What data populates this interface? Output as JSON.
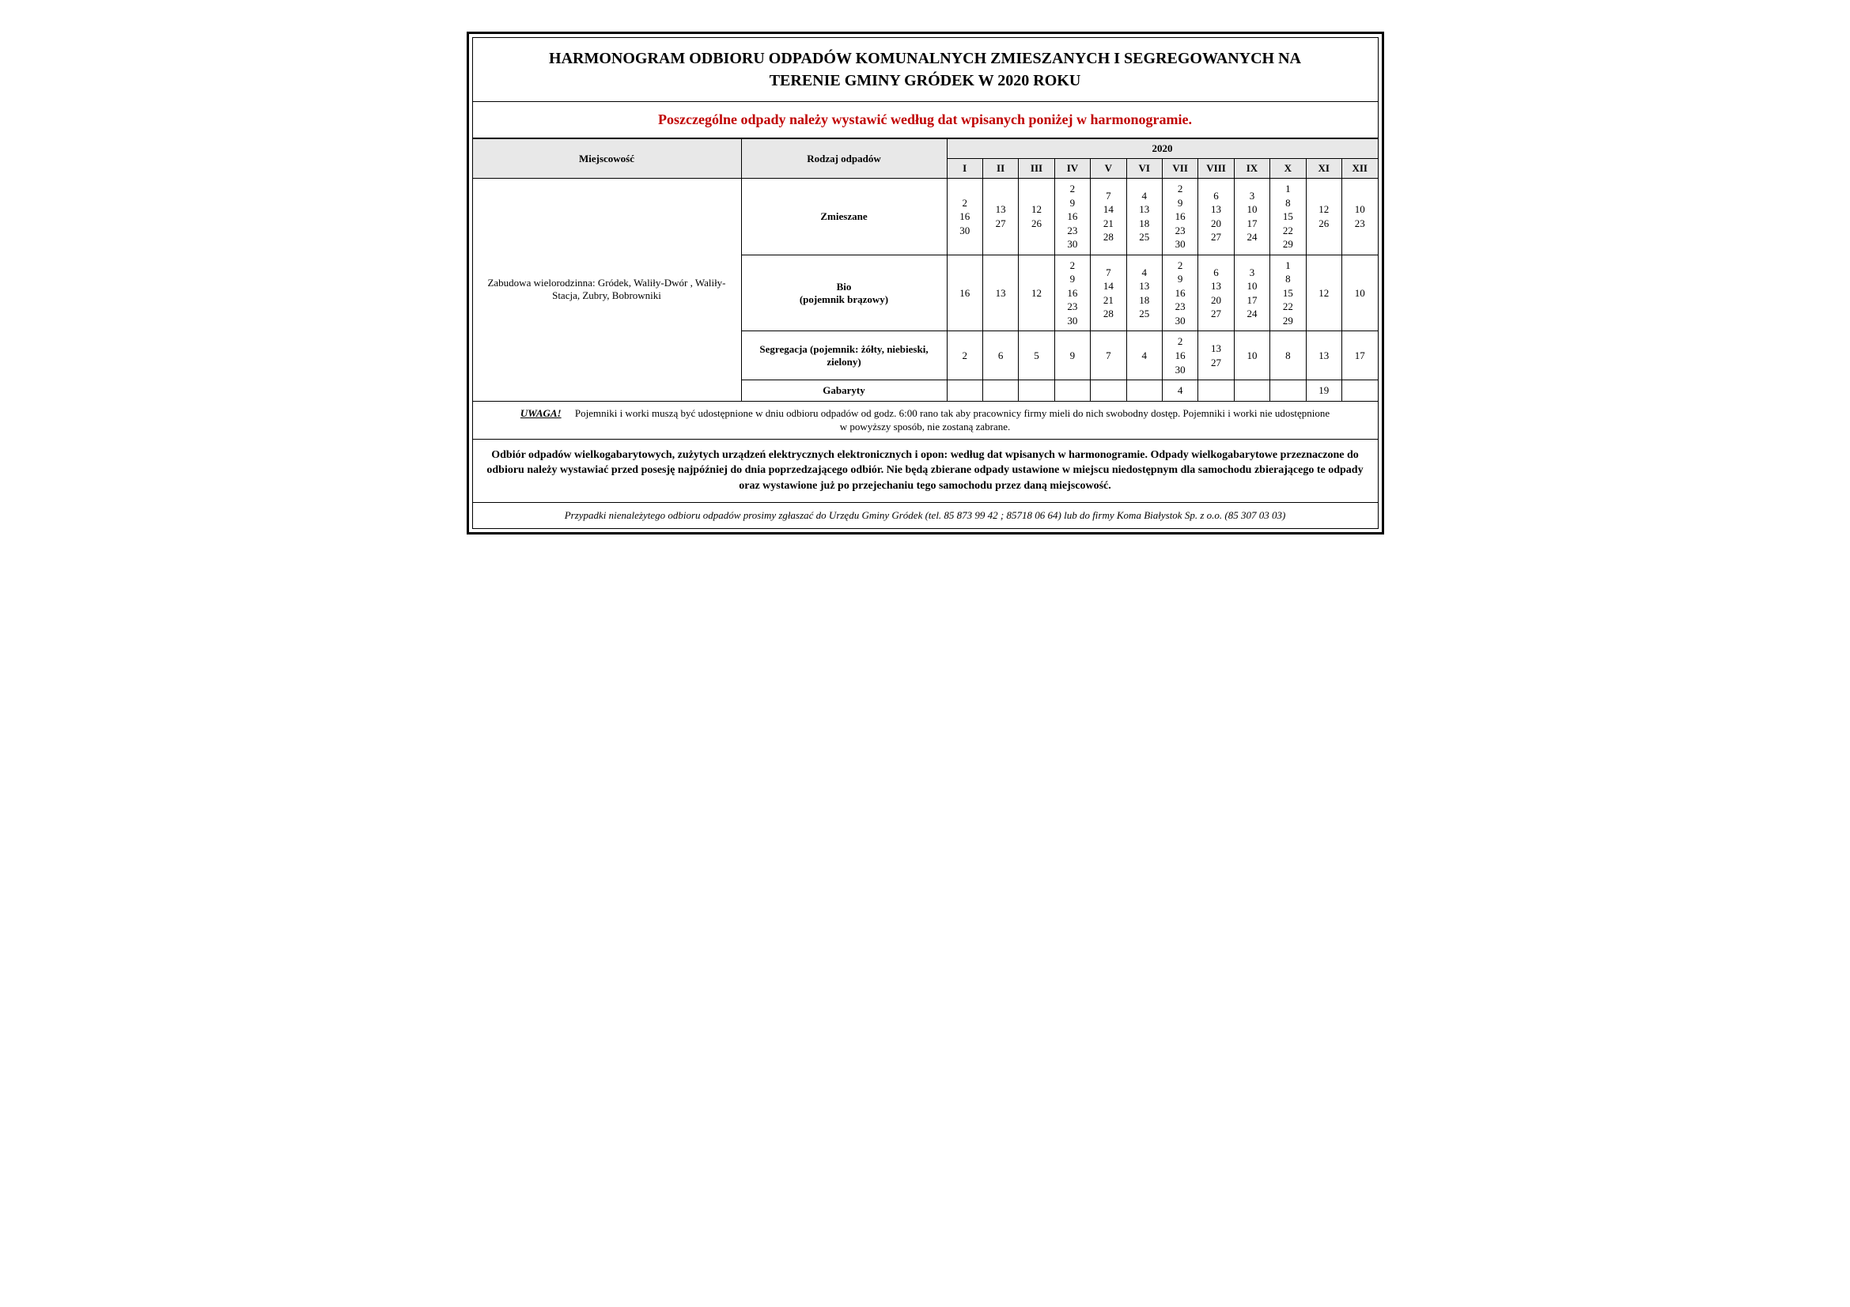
{
  "title_line1": "HARMONOGRAM ODBIORU ODPADÓW KOMUNALNYCH ZMIESZANYCH I SEGREGOWANYCH NA",
  "title_line2": "TERENIE GMINY GRÓDEK W 2020 ROKU",
  "subtitle": "Poszczególne odpady należy wystawić według dat wpisanych poniżej w harmonogramie.",
  "headers": {
    "location": "Miejscowość",
    "wasteType": "Rodzaj odpadów",
    "year": "2020",
    "months": [
      "I",
      "II",
      "III",
      "IV",
      "V",
      "VI",
      "VII",
      "VIII",
      "IX",
      "X",
      "XI",
      "XII"
    ]
  },
  "location": "Zabudowa wielorodzinna: Gródek, Waliły-Dwór , Waliły-Stacja, Zubry, Bobrowniki",
  "rows": [
    {
      "type": "Zmieszane",
      "days": [
        [
          "2",
          "16",
          "30"
        ],
        [
          "13",
          "27"
        ],
        [
          "12",
          "26"
        ],
        [
          "2",
          "9",
          "16",
          "23",
          "30"
        ],
        [
          "7",
          "14",
          "21",
          "28"
        ],
        [
          "4",
          "13",
          "18",
          "25"
        ],
        [
          "2",
          "9",
          "16",
          "23",
          "30"
        ],
        [
          "6",
          "13",
          "20",
          "27"
        ],
        [
          "3",
          "10",
          "17",
          "24"
        ],
        [
          "1",
          "8",
          "15",
          "22",
          "29"
        ],
        [
          "12",
          "26"
        ],
        [
          "10",
          "23"
        ]
      ]
    },
    {
      "type": "Bio\n(pojemnik brązowy)",
      "days": [
        [
          "16"
        ],
        [
          "13"
        ],
        [
          "12"
        ],
        [
          "2",
          "9",
          "16",
          "23",
          "30"
        ],
        [
          "7",
          "14",
          "21",
          "28"
        ],
        [
          "4",
          "13",
          "18",
          "25"
        ],
        [
          "2",
          "9",
          "16",
          "23",
          "30"
        ],
        [
          "6",
          "13",
          "20",
          "27"
        ],
        [
          "3",
          "10",
          "17",
          "24"
        ],
        [
          "1",
          "8",
          "15",
          "22",
          "29"
        ],
        [
          "12"
        ],
        [
          "10"
        ]
      ]
    },
    {
      "type": "Segregacja  (pojemnik: żółty, niebieski, zielony)",
      "days": [
        [
          "2"
        ],
        [
          "6"
        ],
        [
          "5"
        ],
        [
          "9"
        ],
        [
          "7"
        ],
        [
          "4"
        ],
        [
          "2",
          "16",
          "30"
        ],
        [
          "13",
          "27"
        ],
        [
          "10"
        ],
        [
          "8"
        ],
        [
          "13"
        ],
        [
          "17"
        ]
      ]
    },
    {
      "type": "Gabaryty",
      "days": [
        [],
        [],
        [],
        [],
        [],
        [],
        [
          "4"
        ],
        [],
        [],
        [],
        [
          "19"
        ],
        []
      ]
    }
  ],
  "uwaga": {
    "label": "UWAGA!",
    "text": "Pojemniki i worki muszą być udostępnione w dniu odbioru odpadów od godz. 6:00 rano tak aby pracownicy firmy mieli do nich swobodny dostęp. Pojemniki i worki nie udostępnione w powyższy sposób, nie zostaną zabrane."
  },
  "bulky": "Odbiór odpadów wielkogabarytowych, zużytych urządzeń elektrycznych elektronicznych i opon: według dat wpisanych w harmonogramie.  Odpady wielkogabarytowe przeznaczone do odbioru należy wystawiać przed posesję najpóźniej do dnia poprzedzającego odbiór. Nie będą zbierane odpady ustawione w miejscu niedostępnym dla samochodu zbierającego te odpady oraz wystawione już po przejechaniu tego samochodu przez daną miejscowość.",
  "contact": "Przypadki nienależytego odbioru odpadów prosimy zgłaszać do Urzędu Gminy Gródek (tel. 85 873 99 42 ; 85718 06 64) lub  do firmy Koma Białystok Sp. z o.o. (85 307 03 03)",
  "colors": {
    "accent_red": "#c00000",
    "header_gray": "#e8e8e8",
    "border": "#000000",
    "background": "#ffffff",
    "text": "#000000"
  },
  "typography": {
    "title_fontsize": 20,
    "subtitle_fontsize": 18,
    "cell_fontsize": 13,
    "font_family": "Times New Roman"
  }
}
